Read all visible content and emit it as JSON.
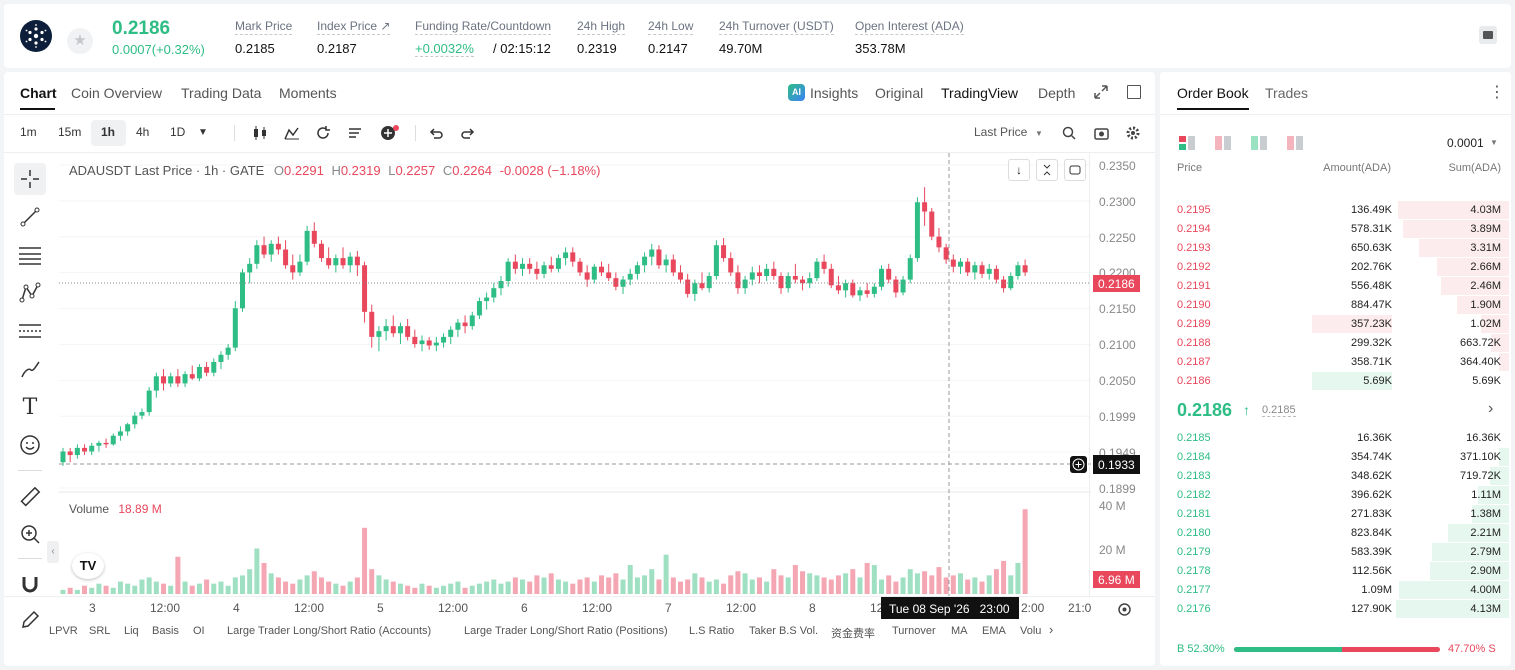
{
  "header": {
    "last_price": "0.2186",
    "change": "0.0007(+0.32%)",
    "stats": [
      {
        "label": "Mark Price",
        "value": "0.2185"
      },
      {
        "label": "Index Price ↗",
        "value": "0.2187"
      },
      {
        "label": "Funding Rate/Countdown",
        "value_green": "+0.0032%",
        "value": "/ 02:15:12"
      },
      {
        "label": "24h High",
        "value": "0.2319"
      },
      {
        "label": "24h Low",
        "value": "0.2147"
      },
      {
        "label": "24h Turnover (USDT)",
        "value": "49.70M"
      },
      {
        "label": "Open Interest (ADA)",
        "value": "353.78M"
      }
    ]
  },
  "chart_tabs": [
    "Chart",
    "Coin Overview",
    "Trading Data",
    "Moments"
  ],
  "view_tabs": {
    "insights": "Insights",
    "ai_badge": "AI",
    "original": "Original",
    "tradingview": "TradingView",
    "depth": "Depth"
  },
  "intervals": [
    "1m",
    "15m",
    "1h",
    "4h",
    "1D"
  ],
  "price_type": "Last Price",
  "legend": {
    "title": "ADAUSDT Last Price · 1h · GATE",
    "o_label": "O",
    "o": "0.2291",
    "h_label": "H",
    "h": "0.2319",
    "l_label": "L",
    "l": "0.2257",
    "c_label": "C",
    "c": "0.2264",
    "chg": "-0.0028 (−1.18%)"
  },
  "volume_legend": {
    "label": "Volume",
    "value": "18.89 M"
  },
  "price_axis": [
    "0.2350",
    "0.2300",
    "0.2250",
    "0.2200",
    "0.2150",
    "0.2100",
    "0.2050",
    "0.1999",
    "0.1949",
    "0.1899"
  ],
  "volume_axis": [
    "40 M",
    "20 M"
  ],
  "current_price_tag": "0.2186",
  "cursor_price_tag": "0.1933",
  "volume_tag": "6.96 M",
  "time_axis": [
    "3",
    "12:00",
    "4",
    "12:00",
    "5",
    "12:00",
    "6",
    "12:00",
    "7",
    "12:00",
    "8",
    "12",
    "2:00",
    "21:0"
  ],
  "cursor_time": "Tue 08 Sep '26   23:00",
  "tv_logo": "TV",
  "indicators": [
    "LPVR",
    "SRL",
    "Liq",
    "Basis",
    "OI",
    "Large Trader Long/Short Ratio (Accounts)",
    "Large Trader Long/Short Ratio (Positions)",
    "L.S Ratio",
    "Taker B.S Vol.",
    "资金费率",
    "Turnover",
    "MA",
    "EMA",
    "Volu"
  ],
  "orderbook": {
    "tabs": [
      "Order Book",
      "Trades"
    ],
    "precision": "0.0001",
    "headers": {
      "price": "Price",
      "amount": "Amount(ADA)",
      "sum": "Sum(ADA)"
    },
    "asks": [
      {
        "price": "0.2195",
        "amount": "136.49K",
        "sum": "4.03M",
        "depth": 0.98,
        "amt_depth": 0.0
      },
      {
        "price": "0.2194",
        "amount": "578.31K",
        "sum": "3.89M",
        "depth": 0.94,
        "amt_depth": 0.0
      },
      {
        "price": "0.2193",
        "amount": "650.63K",
        "sum": "3.31M",
        "depth": 0.8,
        "amt_depth": 0.0
      },
      {
        "price": "0.2192",
        "amount": "202.76K",
        "sum": "2.66M",
        "depth": 0.64,
        "amt_depth": 0.0
      },
      {
        "price": "0.2191",
        "amount": "556.48K",
        "sum": "2.46M",
        "depth": 0.6,
        "amt_depth": 0.0
      },
      {
        "price": "0.2190",
        "amount": "884.47K",
        "sum": "1.90M",
        "depth": 0.46,
        "amt_depth": 0.0
      },
      {
        "price": "0.2189",
        "amount": "357.23K",
        "sum": "1.02M",
        "depth": 0.25,
        "amt_depth": 0.4
      },
      {
        "price": "0.2188",
        "amount": "299.32K",
        "sum": "663.72K",
        "depth": 0.16,
        "amt_depth": 0.0
      },
      {
        "price": "0.2187",
        "amount": "358.71K",
        "sum": "364.40K",
        "depth": 0.09,
        "amt_depth": 0.0
      },
      {
        "price": "0.2186",
        "amount": "5.69K",
        "sum": "5.69K",
        "depth": 0.0,
        "amt_depth": 0.4
      }
    ],
    "mid_price": "0.2186",
    "mid_arrow": "↑",
    "mid_mark": "0.2185",
    "bids": [
      {
        "price": "0.2185",
        "amount": "16.36K",
        "sum": "16.36K",
        "depth": 0.0
      },
      {
        "price": "0.2184",
        "amount": "354.74K",
        "sum": "371.10K",
        "depth": 0.09
      },
      {
        "price": "0.2183",
        "amount": "348.62K",
        "sum": "719.72K",
        "depth": 0.17
      },
      {
        "price": "0.2182",
        "amount": "396.62K",
        "sum": "1.11M",
        "depth": 0.27
      },
      {
        "price": "0.2181",
        "amount": "271.83K",
        "sum": "1.38M",
        "depth": 0.33
      },
      {
        "price": "0.2180",
        "amount": "823.84K",
        "sum": "2.21M",
        "depth": 0.54
      },
      {
        "price": "0.2179",
        "amount": "583.39K",
        "sum": "2.79M",
        "depth": 0.68
      },
      {
        "price": "0.2178",
        "amount": "112.56K",
        "sum": "2.90M",
        "depth": 0.7
      },
      {
        "price": "0.2177",
        "amount": "1.09M",
        "sum": "4.00M",
        "depth": 0.97
      },
      {
        "price": "0.2176",
        "amount": "127.90K",
        "sum": "4.13M",
        "depth": 1.0
      }
    ],
    "buy_pct": "B 52.30%",
    "sell_pct": "47.70% S",
    "buy_ratio": 0.523
  },
  "colors": {
    "green": "#2ebd85",
    "red": "#e8475c",
    "green_light": "#e6f7ef",
    "red_light": "#fdeced"
  },
  "chart_data": {
    "type": "candlestick",
    "symbol": "ADAUSDT",
    "interval": "1h",
    "ylim": [
      0.1899,
      0.235
    ],
    "candles": [
      [
        0.1935,
        0.1955,
        0.193,
        0.195
      ],
      [
        0.195,
        0.1955,
        0.1935,
        0.1945
      ],
      [
        0.1945,
        0.196,
        0.194,
        0.1955
      ],
      [
        0.1955,
        0.196,
        0.1945,
        0.195
      ],
      [
        0.195,
        0.1962,
        0.1945,
        0.1958
      ],
      [
        0.1958,
        0.1965,
        0.195,
        0.1962
      ],
      [
        0.1962,
        0.1968,
        0.1955,
        0.196
      ],
      [
        0.196,
        0.1975,
        0.1958,
        0.1972
      ],
      [
        0.1972,
        0.1985,
        0.1965,
        0.1978
      ],
      [
        0.1978,
        0.199,
        0.1972,
        0.1988
      ],
      [
        0.1988,
        0.2005,
        0.1982,
        0.2
      ],
      [
        0.2,
        0.201,
        0.1995,
        0.2005
      ],
      [
        0.2005,
        0.204,
        0.2,
        0.2035
      ],
      [
        0.2035,
        0.206,
        0.2025,
        0.2055
      ],
      [
        0.2055,
        0.2065,
        0.2035,
        0.2045
      ],
      [
        0.2045,
        0.206,
        0.204,
        0.2055
      ],
      [
        0.2055,
        0.2065,
        0.204,
        0.2045
      ],
      [
        0.2045,
        0.2062,
        0.204,
        0.2058
      ],
      [
        0.2058,
        0.207,
        0.205,
        0.2052
      ],
      [
        0.2052,
        0.2072,
        0.2048,
        0.2068
      ],
      [
        0.2068,
        0.2075,
        0.2055,
        0.206
      ],
      [
        0.206,
        0.208,
        0.2055,
        0.2075
      ],
      [
        0.2075,
        0.209,
        0.2065,
        0.2085
      ],
      [
        0.2085,
        0.21,
        0.2078,
        0.2095
      ],
      [
        0.2095,
        0.216,
        0.209,
        0.215
      ],
      [
        0.215,
        0.2205,
        0.2145,
        0.22
      ],
      [
        0.22,
        0.222,
        0.2185,
        0.2212
      ],
      [
        0.2212,
        0.2245,
        0.2205,
        0.2238
      ],
      [
        0.2238,
        0.225,
        0.222,
        0.2225
      ],
      [
        0.2225,
        0.2245,
        0.2215,
        0.224
      ],
      [
        0.224,
        0.225,
        0.2225,
        0.2232
      ],
      [
        0.2232,
        0.2245,
        0.2205,
        0.221
      ],
      [
        0.221,
        0.2225,
        0.219,
        0.22
      ],
      [
        0.22,
        0.2225,
        0.2195,
        0.2215
      ],
      [
        0.2215,
        0.2265,
        0.221,
        0.2258
      ],
      [
        0.2258,
        0.227,
        0.2235,
        0.224
      ],
      [
        0.224,
        0.2245,
        0.2215,
        0.222
      ],
      [
        0.222,
        0.2235,
        0.2205,
        0.221
      ],
      [
        0.221,
        0.2225,
        0.22,
        0.222
      ],
      [
        0.222,
        0.2235,
        0.2205,
        0.221
      ],
      [
        0.221,
        0.2228,
        0.22,
        0.2222
      ],
      [
        0.2222,
        0.223,
        0.2195,
        0.221
      ],
      [
        0.221,
        0.2215,
        0.213,
        0.2145
      ],
      [
        0.2145,
        0.2155,
        0.2095,
        0.211
      ],
      [
        0.211,
        0.2125,
        0.209,
        0.2118
      ],
      [
        0.2118,
        0.2135,
        0.2105,
        0.2125
      ],
      [
        0.2125,
        0.214,
        0.211,
        0.2115
      ],
      [
        0.2115,
        0.213,
        0.21,
        0.2125
      ],
      [
        0.2125,
        0.2135,
        0.2105,
        0.211
      ],
      [
        0.211,
        0.212,
        0.2095,
        0.21
      ],
      [
        0.21,
        0.2112,
        0.209,
        0.2105
      ],
      [
        0.2105,
        0.211,
        0.2092,
        0.2098
      ],
      [
        0.2098,
        0.211,
        0.209,
        0.2102
      ],
      [
        0.2102,
        0.2115,
        0.2095,
        0.211
      ],
      [
        0.211,
        0.2125,
        0.21,
        0.212
      ],
      [
        0.212,
        0.2135,
        0.211,
        0.213
      ],
      [
        0.213,
        0.214,
        0.2115,
        0.2125
      ],
      [
        0.2125,
        0.2145,
        0.212,
        0.214
      ],
      [
        0.214,
        0.2165,
        0.2135,
        0.216
      ],
      [
        0.216,
        0.2172,
        0.2148,
        0.2165
      ],
      [
        0.2165,
        0.2185,
        0.2158,
        0.2178
      ],
      [
        0.2178,
        0.2195,
        0.2168,
        0.2188
      ],
      [
        0.2188,
        0.222,
        0.218,
        0.2215
      ],
      [
        0.2215,
        0.2225,
        0.2198,
        0.2205
      ],
      [
        0.2205,
        0.222,
        0.2195,
        0.2212
      ],
      [
        0.2212,
        0.222,
        0.2198,
        0.2205
      ],
      [
        0.2205,
        0.2215,
        0.219,
        0.2198
      ],
      [
        0.2198,
        0.2215,
        0.2192,
        0.221
      ],
      [
        0.221,
        0.2222,
        0.22,
        0.2205
      ],
      [
        0.2205,
        0.2225,
        0.22,
        0.222
      ],
      [
        0.222,
        0.2235,
        0.221,
        0.2228
      ],
      [
        0.2228,
        0.2235,
        0.2208,
        0.2215
      ],
      [
        0.2215,
        0.222,
        0.2195,
        0.22
      ],
      [
        0.22,
        0.221,
        0.218,
        0.219
      ],
      [
        0.219,
        0.2212,
        0.2185,
        0.2208
      ],
      [
        0.2208,
        0.2215,
        0.2195,
        0.22
      ],
      [
        0.22,
        0.2212,
        0.2188,
        0.2192
      ],
      [
        0.2192,
        0.22,
        0.2175,
        0.218
      ],
      [
        0.218,
        0.2195,
        0.217,
        0.219
      ],
      [
        0.219,
        0.2205,
        0.2182,
        0.2198
      ],
      [
        0.2198,
        0.2215,
        0.219,
        0.221
      ],
      [
        0.221,
        0.2228,
        0.22,
        0.2222
      ],
      [
        0.2222,
        0.224,
        0.221,
        0.2232
      ],
      [
        0.2232,
        0.2238,
        0.2205,
        0.221
      ],
      [
        0.221,
        0.2225,
        0.22,
        0.2218
      ],
      [
        0.2218,
        0.2225,
        0.2195,
        0.22
      ],
      [
        0.22,
        0.221,
        0.2185,
        0.219
      ],
      [
        0.219,
        0.2198,
        0.2165,
        0.217
      ],
      [
        0.217,
        0.219,
        0.216,
        0.2185
      ],
      [
        0.2185,
        0.22,
        0.2175,
        0.2178
      ],
      [
        0.2178,
        0.22,
        0.2172,
        0.2195
      ],
      [
        0.2195,
        0.2245,
        0.219,
        0.2238
      ],
      [
        0.2238,
        0.2248,
        0.2215,
        0.222
      ],
      [
        0.222,
        0.2228,
        0.2195,
        0.22
      ],
      [
        0.22,
        0.221,
        0.217,
        0.2178
      ],
      [
        0.2178,
        0.2195,
        0.217,
        0.219
      ],
      [
        0.219,
        0.2208,
        0.2182,
        0.22
      ],
      [
        0.22,
        0.221,
        0.2185,
        0.2195
      ],
      [
        0.2195,
        0.2212,
        0.2188,
        0.2205
      ],
      [
        0.2205,
        0.2215,
        0.219,
        0.2195
      ],
      [
        0.2195,
        0.22,
        0.217,
        0.2178
      ],
      [
        0.2178,
        0.22,
        0.2172,
        0.2195
      ],
      [
        0.2195,
        0.2212,
        0.2185,
        0.219
      ],
      [
        0.219,
        0.2195,
        0.2175,
        0.2185
      ],
      [
        0.2185,
        0.22,
        0.2178,
        0.2192
      ],
      [
        0.2192,
        0.222,
        0.2188,
        0.2215
      ],
      [
        0.2215,
        0.2225,
        0.2198,
        0.2205
      ],
      [
        0.2205,
        0.2212,
        0.2178,
        0.2182
      ],
      [
        0.2182,
        0.2195,
        0.217,
        0.2175
      ],
      [
        0.2175,
        0.219,
        0.2165,
        0.2185
      ],
      [
        0.2185,
        0.219,
        0.2165,
        0.2168
      ],
      [
        0.2168,
        0.218,
        0.216,
        0.2175
      ],
      [
        0.2175,
        0.2185,
        0.2165,
        0.217
      ],
      [
        0.217,
        0.2185,
        0.2165,
        0.218
      ],
      [
        0.218,
        0.221,
        0.2175,
        0.2205
      ],
      [
        0.2205,
        0.2212,
        0.2185,
        0.219
      ],
      [
        0.219,
        0.2195,
        0.2165,
        0.2172
      ],
      [
        0.2172,
        0.2195,
        0.2168,
        0.219
      ],
      [
        0.219,
        0.2225,
        0.2185,
        0.222
      ],
      [
        0.222,
        0.2305,
        0.2215,
        0.2298
      ],
      [
        0.2298,
        0.2319,
        0.2265,
        0.2285
      ],
      [
        0.2285,
        0.229,
        0.2245,
        0.225
      ],
      [
        0.225,
        0.2262,
        0.2228,
        0.2235
      ],
      [
        0.2235,
        0.224,
        0.2212,
        0.2218
      ],
      [
        0.2218,
        0.2225,
        0.22,
        0.2208
      ],
      [
        0.2208,
        0.222,
        0.2198,
        0.2215
      ],
      [
        0.2215,
        0.222,
        0.2195,
        0.22
      ],
      [
        0.22,
        0.2215,
        0.219,
        0.221
      ],
      [
        0.221,
        0.2215,
        0.2192,
        0.2198
      ],
      [
        0.2198,
        0.2212,
        0.219,
        0.2205
      ],
      [
        0.2205,
        0.221,
        0.2185,
        0.219
      ],
      [
        0.219,
        0.2195,
        0.2172,
        0.2178
      ],
      [
        0.2178,
        0.22,
        0.2175,
        0.2195
      ],
      [
        0.2195,
        0.2215,
        0.219,
        0.221
      ],
      [
        0.221,
        0.2218,
        0.2195,
        0.22
      ]
    ],
    "volumes_m": [
      2,
      3,
      2,
      4,
      3,
      5,
      4,
      3,
      6,
      5,
      4,
      7,
      8,
      6,
      5,
      4,
      18,
      6,
      4,
      5,
      7,
      5,
      6,
      4,
      8,
      9,
      12,
      22,
      15,
      10,
      8,
      6,
      5,
      7,
      9,
      11,
      8,
      6,
      5,
      4,
      6,
      8,
      32,
      12,
      9,
      7,
      6,
      5,
      4,
      3,
      5,
      4,
      3,
      4,
      5,
      6,
      3,
      4,
      5,
      6,
      7,
      5,
      6,
      8,
      7,
      6,
      9,
      8,
      10,
      7,
      6,
      5,
      7,
      8,
      6,
      9,
      8,
      10,
      7,
      14,
      8,
      9,
      12,
      7,
      19,
      8,
      6,
      7,
      10,
      8,
      6,
      7,
      5,
      9,
      11,
      10,
      7,
      8,
      6,
      12,
      9,
      8,
      14,
      11,
      10,
      9,
      8,
      7,
      9,
      10,
      12,
      8,
      15,
      14,
      7,
      9,
      6,
      8,
      12,
      10,
      11,
      9,
      13,
      8,
      9,
      10,
      7,
      8,
      6,
      9,
      12,
      16,
      9,
      15,
      41,
      25,
      15,
      10,
      9,
      8,
      6,
      7,
      5,
      11,
      8,
      10,
      7
    ]
  }
}
